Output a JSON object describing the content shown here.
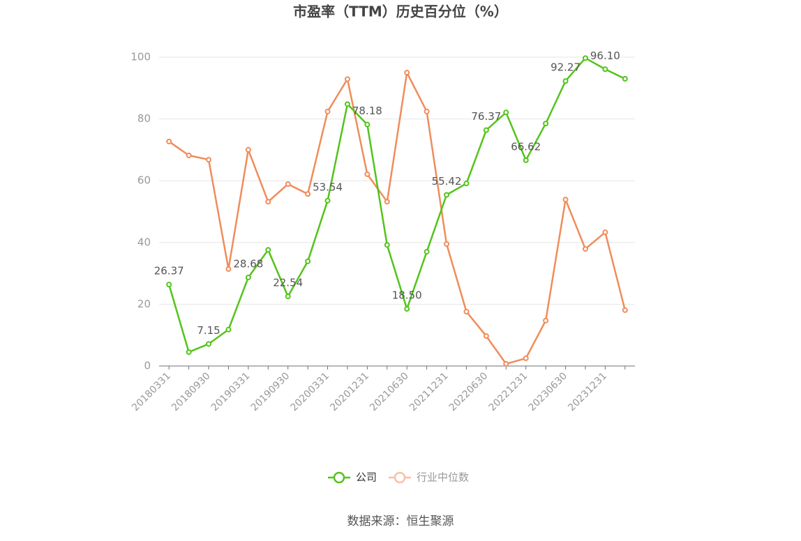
{
  "chart_data": {
    "type": "line",
    "title": "市盈率（TTM）历史百分位（%）",
    "categories": [
      "20180331",
      null,
      "20180930",
      null,
      "20190331",
      null,
      "20190930",
      null,
      "20200331",
      null,
      "20201231",
      null,
      "20210630",
      null,
      "20211231",
      null,
      "20220630",
      null,
      "20221231",
      null,
      "20230630",
      null,
      "20231231",
      null
    ],
    "series": [
      {
        "name": "公司",
        "color": "#52c41a",
        "values": [
          26.37,
          4.5,
          7.15,
          11.8,
          28.68,
          37.6,
          22.54,
          33.9,
          53.54,
          84.8,
          78.18,
          39.2,
          18.5,
          37.0,
          55.42,
          59.1,
          76.37,
          82.1,
          66.62,
          78.5,
          92.27,
          99.7,
          96.1,
          93.0
        ],
        "value_labels": [
          "26.37",
          null,
          "7.15",
          null,
          "28.68",
          null,
          "22.54",
          null,
          "53.54",
          null,
          "78.18",
          null,
          "18.50",
          null,
          "55.42",
          null,
          "76.37",
          null,
          "66.62",
          null,
          "92.27",
          null,
          "96.10",
          null
        ]
      },
      {
        "name": "行业中位数",
        "color": "#f08c5a",
        "values": [
          72.7,
          68.2,
          66.8,
          31.4,
          70.0,
          53.2,
          58.9,
          55.7,
          82.4,
          92.9,
          62.1,
          53.2,
          95.0,
          82.4,
          39.5,
          17.6,
          9.7,
          0.7,
          2.5,
          14.7,
          53.9,
          37.9,
          43.3,
          18.1
        ]
      }
    ],
    "ylim": [
      0,
      100
    ],
    "yticks": [
      0,
      20,
      40,
      60,
      80,
      100
    ],
    "grid": true,
    "source": "数据来源：恒生聚源"
  }
}
